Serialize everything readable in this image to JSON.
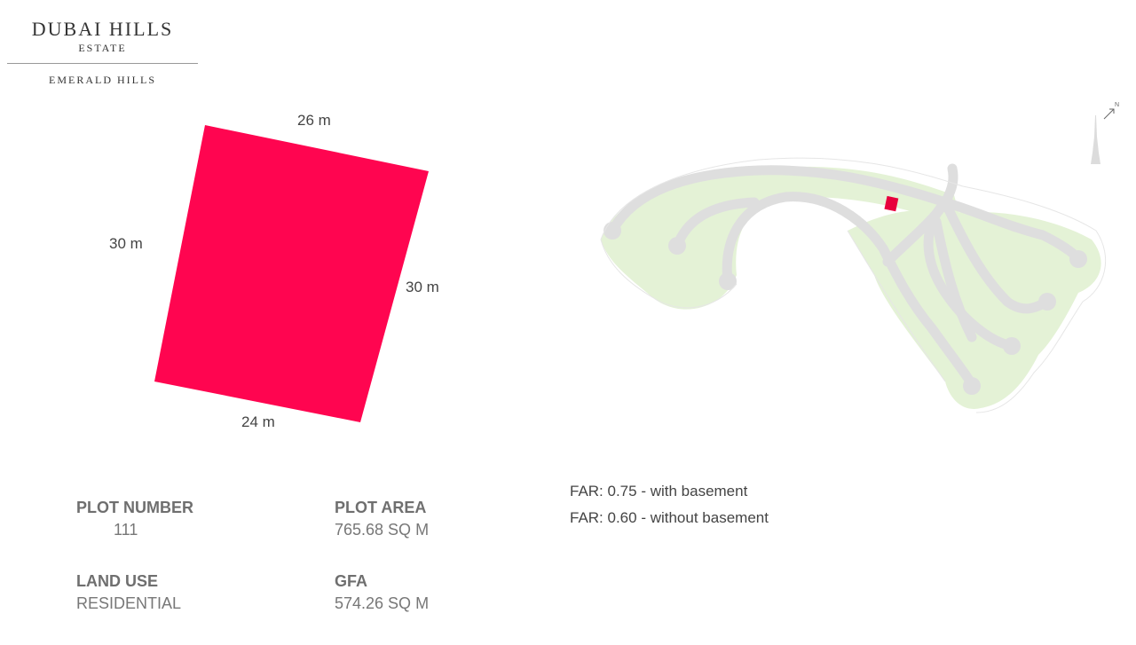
{
  "brand": {
    "title": "DUBAI HILLS",
    "subtitle": "ESTATE",
    "community": "EMERALD HILLS"
  },
  "plot_shape": {
    "top_side": "26 m",
    "left_side": "30 m",
    "right_side": "30 m",
    "bottom_side": "24 m",
    "color": "#FF0550"
  },
  "site_map": {
    "north_label": "N",
    "highlight_color": "#E8003D",
    "green_color": "#E4F2D6",
    "road_color": "#DEDEDE"
  },
  "details": {
    "plot_number_label": "PLOT NUMBER",
    "plot_number_value": "111",
    "plot_area_label": "PLOT AREA",
    "plot_area_value": "765.68 SQ M",
    "land_use_label": "LAND USE",
    "land_use_value": "RESIDENTIAL",
    "gfa_label": "GFA",
    "gfa_value": "574.26 SQ M"
  },
  "far": {
    "with_basement": "FAR: 0.75 - with basement",
    "without_basement": "FAR: 0.60 - without basement"
  }
}
